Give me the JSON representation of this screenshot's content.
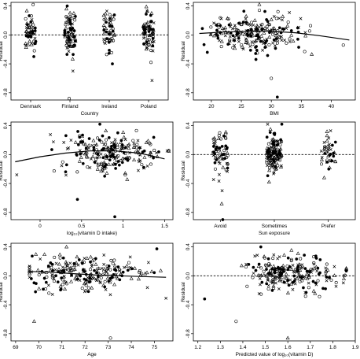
{
  "chart_data": [
    {
      "type": "scatter",
      "panel": "country",
      "xlabel": "Country",
      "ylabel": "Residual",
      "x_type": "categorical",
      "categories": [
        "Denmark",
        "Finland",
        "Ireland",
        "Poland"
      ],
      "ylim": [
        -0.9,
        0.45
      ],
      "yticks": [
        -0.8,
        -0.4,
        0.0,
        0.4
      ],
      "reference_line": {
        "y": 0,
        "style": "dashed"
      },
      "groups": [
        {
          "category": "Denmark",
          "n": 50,
          "center": 0.02,
          "spread": 0.13,
          "extremes": [
            0.42,
            -0.22,
            -0.3
          ]
        },
        {
          "category": "Finland",
          "n": 75,
          "center": 0.03,
          "spread": 0.14,
          "extremes": [
            0.4,
            0.36,
            -0.5,
            -0.88
          ]
        },
        {
          "category": "Ireland",
          "n": 50,
          "center": 0.05,
          "spread": 0.13,
          "extremes": [
            0.33,
            -0.4
          ]
        },
        {
          "category": "Poland",
          "n": 70,
          "center": 0.03,
          "spread": 0.13,
          "extremes": [
            0.3,
            -0.38,
            -0.63
          ]
        }
      ]
    },
    {
      "type": "scatter",
      "panel": "bmi",
      "xlabel": "BMI",
      "ylabel": "Residual",
      "xlim": [
        17,
        44
      ],
      "xticks": [
        20,
        25,
        30,
        35,
        40
      ],
      "ylim": [
        -0.9,
        0.45
      ],
      "yticks": [
        -0.8,
        -0.4,
        0.0,
        0.4
      ],
      "x_distribution": {
        "center": 27,
        "spread": 3.6,
        "min": 18.5,
        "max": 43.5
      },
      "n": 230,
      "smooth": {
        "x": [
          18,
          22,
          26,
          30,
          34,
          38,
          43
        ],
        "y": [
          0.02,
          0.04,
          0.05,
          0.05,
          0.03,
          -0.01,
          -0.07
        ]
      },
      "extremes": [
        {
          "x": 31,
          "y": -0.86
        },
        {
          "x": 30,
          "y": -0.6
        },
        {
          "x": 28,
          "y": 0.42
        },
        {
          "x": 42,
          "y": -0.14
        }
      ]
    },
    {
      "type": "scatter",
      "panel": "vitd_intake",
      "xlabel": "log₁₀(vitamin D intake)",
      "ylabel": "Residual",
      "xlim": [
        -0.35,
        1.6
      ],
      "xticks": [
        0.0,
        0.5,
        1.0,
        1.5
      ],
      "ylim": [
        -0.9,
        0.45
      ],
      "yticks": [
        -0.8,
        -0.4,
        0.0,
        0.4
      ],
      "x_distribution": {
        "center": 0.85,
        "spread": 0.3,
        "min": -0.3,
        "max": 1.55
      },
      "n": 230,
      "smooth": {
        "x": [
          -0.3,
          0.0,
          0.3,
          0.6,
          0.9,
          1.2,
          1.5
        ],
        "y": [
          -0.1,
          -0.03,
          0.02,
          0.05,
          0.05,
          0.02,
          -0.06
        ]
      },
      "extremes": [
        {
          "x": 0.9,
          "y": -0.86
        },
        {
          "x": 0.45,
          "y": -0.62
        },
        {
          "x": -0.28,
          "y": -0.28
        },
        {
          "x": 0.72,
          "y": 0.42
        }
      ]
    },
    {
      "type": "scatter",
      "panel": "sun_exposure",
      "xlabel": "Sun exposure",
      "ylabel": "Residual",
      "x_type": "categorical",
      "categories": [
        "Avoid",
        "Sometimes",
        "Prefer"
      ],
      "ylim": [
        -0.9,
        0.45
      ],
      "yticks": [
        -0.8,
        -0.4,
        0.0,
        0.4
      ],
      "reference_line": {
        "y": 0,
        "style": "dashed"
      },
      "groups": [
        {
          "category": "Avoid",
          "n": 65,
          "center": 0.0,
          "spread": 0.15,
          "extremes": [
            0.3,
            -0.5,
            -0.68,
            -0.9
          ]
        },
        {
          "category": "Sometimes",
          "n": 130,
          "center": 0.02,
          "spread": 0.13,
          "extremes": [
            0.35,
            -0.38
          ]
        },
        {
          "category": "Prefer",
          "n": 40,
          "center": 0.04,
          "spread": 0.13,
          "extremes": [
            0.33,
            -0.32
          ]
        }
      ]
    },
    {
      "type": "scatter",
      "panel": "age",
      "xlabel": "Age",
      "ylabel": "Residual",
      "xlim": [
        68.8,
        75.8
      ],
      "xticks": [
        69,
        70,
        71,
        72,
        73,
        74,
        75
      ],
      "ylim": [
        -0.9,
        0.45
      ],
      "yticks": [
        -0.8,
        -0.4,
        0.0,
        0.4
      ],
      "x_distribution": {
        "center": 72,
        "spread": 1.3,
        "min": 69.6,
        "max": 75.6
      },
      "n": 230,
      "smooth": {
        "x": [
          69.6,
          70.5,
          71.5,
          72.5,
          73.5,
          74.5,
          75.5
        ],
        "y": [
          0.06,
          0.05,
          0.03,
          0.01,
          0.0,
          -0.01,
          -0.02
        ]
      },
      "extremes": [
        {
          "x": 73.1,
          "y": -0.86
        },
        {
          "x": 69.8,
          "y": -0.63
        },
        {
          "x": 75.5,
          "y": -0.31
        },
        {
          "x": 71.2,
          "y": 0.4
        }
      ]
    },
    {
      "type": "scatter",
      "panel": "predicted",
      "xlabel": "Predicted value of log₁₀(vitamin D)",
      "ylabel": "Residual",
      "xlim": [
        1.18,
        1.9
      ],
      "xticks": [
        1.2,
        1.3,
        1.4,
        1.5,
        1.6,
        1.7,
        1.8,
        1.9
      ],
      "ylim": [
        -0.9,
        0.45
      ],
      "yticks": [
        -0.8,
        -0.4,
        0.0,
        0.4
      ],
      "reference_line": {
        "y": 0,
        "style": "dashed"
      },
      "x_distribution": {
        "center": 1.62,
        "spread": 0.1,
        "min": 1.22,
        "max": 1.86
      },
      "n": 230,
      "extremes": [
        {
          "x": 1.6,
          "y": -0.86
        },
        {
          "x": 1.37,
          "y": -0.63
        },
        {
          "x": 1.23,
          "y": -0.32
        },
        {
          "x": 1.85,
          "y": 0.0
        },
        {
          "x": 1.48,
          "y": 0.4
        }
      ]
    }
  ]
}
